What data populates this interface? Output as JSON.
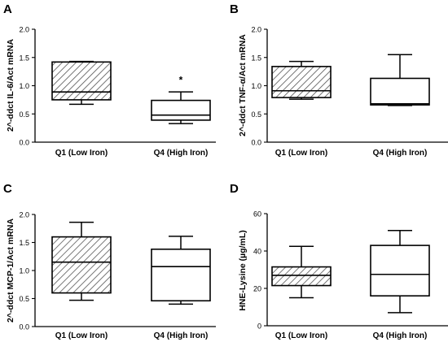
{
  "colors": {
    "axis": "#000000",
    "box_edge": "#000000",
    "hatch": "#555555",
    "background": "#ffffff"
  },
  "chart_data": [
    {
      "panel_label": "A",
      "type": "boxplot",
      "ylabel": "2^-ddct IL-6/Act mRNA",
      "ylim": [
        0,
        2.0
      ],
      "yticks": [
        "0.0",
        "0.5",
        "1.0",
        "1.5",
        "2.0"
      ],
      "grid": false,
      "categories": [
        "Q1 (Low Iron)",
        "Q4 (High Iron)"
      ],
      "boxes": [
        {
          "category": "Q1 (Low Iron)",
          "whisker_low": 0.67,
          "q1": 0.75,
          "median": 0.89,
          "q3": 1.42,
          "whisker_high": 1.43,
          "fill": "hatched"
        },
        {
          "category": "Q4 (High Iron)",
          "whisker_low": 0.33,
          "q1": 0.39,
          "median": 0.48,
          "q3": 0.74,
          "whisker_high": 0.89,
          "fill": "open"
        }
      ],
      "annotations": [
        {
          "category": "Q4 (High Iron)",
          "text": "*",
          "y": 1.1
        }
      ]
    },
    {
      "panel_label": "B",
      "type": "boxplot",
      "ylabel": "2^-ddct TNF-α/Act mRNA",
      "ylim": [
        0,
        2.0
      ],
      "yticks": [
        "0.0",
        "0.5",
        "1.0",
        "1.5",
        "2.0"
      ],
      "grid": false,
      "categories": [
        "Q1 (Low Iron)",
        "Q4 (High Iron)"
      ],
      "boxes": [
        {
          "category": "Q1 (Low Iron)",
          "whisker_low": 0.76,
          "q1": 0.79,
          "median": 0.91,
          "q3": 1.34,
          "whisker_high": 1.43,
          "fill": "hatched"
        },
        {
          "category": "Q4 (High Iron)",
          "whisker_low": 0.65,
          "q1": 0.66,
          "median": 0.68,
          "q3": 1.13,
          "whisker_high": 1.55,
          "fill": "open"
        }
      ],
      "annotations": []
    },
    {
      "panel_label": "C",
      "type": "boxplot",
      "ylabel": "2^-ddct MCP-1/Act mRNA",
      "ylim": [
        0,
        2.0
      ],
      "yticks": [
        "0.0",
        "0.5",
        "1.0",
        "1.5",
        "2.0"
      ],
      "grid": false,
      "categories": [
        "Q1 (Low Iron)",
        "Q4 (High Iron)"
      ],
      "boxes": [
        {
          "category": "Q1 (Low Iron)",
          "whisker_low": 0.47,
          "q1": 0.6,
          "median": 1.15,
          "q3": 1.6,
          "whisker_high": 1.86,
          "fill": "hatched"
        },
        {
          "category": "Q4 (High Iron)",
          "whisker_low": 0.4,
          "q1": 0.46,
          "median": 1.07,
          "q3": 1.38,
          "whisker_high": 1.61,
          "fill": "open"
        }
      ],
      "annotations": []
    },
    {
      "panel_label": "D",
      "type": "boxplot",
      "ylabel": "HNE-Lysine (µg/mL)",
      "ylim": [
        0,
        60
      ],
      "yticks": [
        "0",
        "20",
        "40",
        "60"
      ],
      "grid": false,
      "categories": [
        "Q1 (Low Iron)",
        "Q4 (High Iron)"
      ],
      "boxes": [
        {
          "category": "Q1 (Low Iron)",
          "whisker_low": 15,
          "q1": 21.5,
          "median": 27,
          "q3": 31.5,
          "whisker_high": 42.5,
          "fill": "hatched"
        },
        {
          "category": "Q4 (High Iron)",
          "whisker_low": 7,
          "q1": 16,
          "median": 27.5,
          "q3": 43,
          "whisker_high": 51,
          "fill": "open"
        }
      ],
      "annotations": []
    }
  ]
}
